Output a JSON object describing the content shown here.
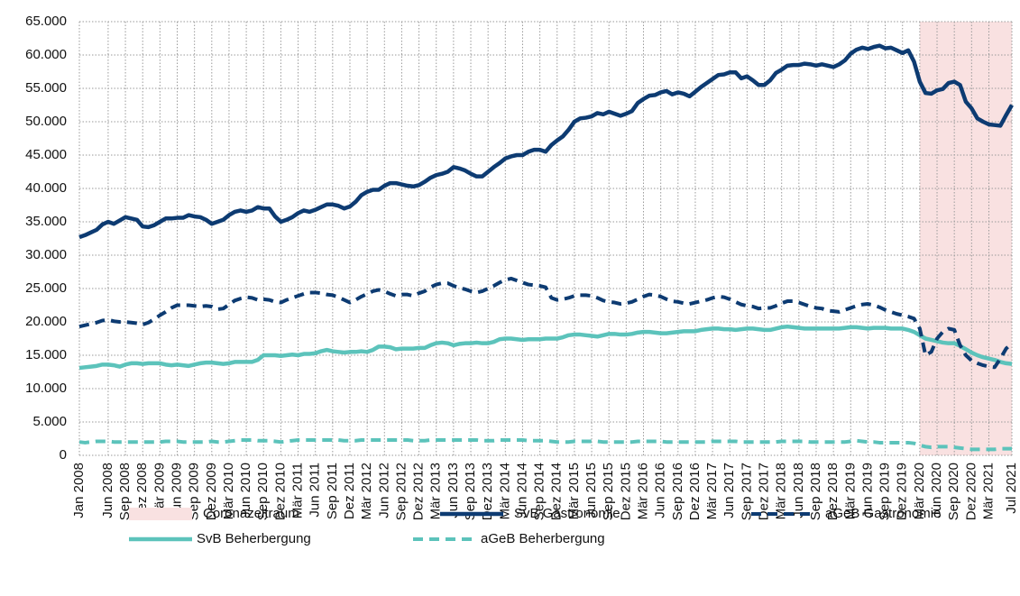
{
  "chart_data": {
    "type": "line",
    "categories": [
      "Jan 2008",
      null,
      null,
      null,
      null,
      "Jun 2008",
      null,
      null,
      "Sep 2008",
      null,
      null,
      "Dez 2008",
      null,
      null,
      "Mär 2009",
      null,
      null,
      "Jun 2009",
      null,
      null,
      "Sep 2009",
      null,
      null,
      "Dez 2009",
      null,
      null,
      "Mär 2010",
      null,
      null,
      "Jun 2010",
      null,
      null,
      "Sep 2010",
      null,
      null,
      "Dez 2010",
      null,
      null,
      "Mär 2011",
      null,
      null,
      "Jun 2011",
      null,
      null,
      "Sep 2011",
      null,
      null,
      "Dez 2011",
      null,
      null,
      "Mär 2012",
      null,
      null,
      "Jun 2012",
      null,
      null,
      "Sep 2012",
      null,
      null,
      "Dez 2012",
      null,
      null,
      "Mär 2013",
      null,
      null,
      "Jun 2013",
      null,
      null,
      "Sep 2013",
      null,
      null,
      "Dez 2013",
      null,
      null,
      "Mär 2014",
      null,
      null,
      "Jun 2014",
      null,
      null,
      "Sep 2014",
      null,
      null,
      "Dez 2014",
      null,
      null,
      "Mär 2015",
      null,
      null,
      "Jun 2015",
      null,
      null,
      "Sep 2015",
      null,
      null,
      "Dez 2015",
      null,
      null,
      "Mär 2016",
      null,
      null,
      "Jun 2016",
      null,
      null,
      "Sep 2016",
      null,
      null,
      "Dez 2016",
      null,
      null,
      "Mär 2017",
      null,
      null,
      "Jun 2017",
      null,
      null,
      "Sep 2017",
      null,
      null,
      "Dez 2017",
      null,
      null,
      "Mär 2018",
      null,
      null,
      "Jun 2018",
      null,
      null,
      "Sep 2018",
      null,
      null,
      "Dez 2018",
      null,
      null,
      "Mär 2019",
      null,
      null,
      "Jun 2019",
      null,
      null,
      "Sep 2019",
      null,
      null,
      "Dez 2019",
      null,
      null,
      "Mär 2020",
      null,
      null,
      "Jun 2020",
      null,
      null,
      "Sep 2020",
      null,
      null,
      "Dez 2020",
      null,
      null,
      "Mär 2021",
      null,
      null,
      null,
      "Jul 2021"
    ],
    "ylim": [
      0,
      65000
    ],
    "yticks": [
      0,
      {
        "value": 5000,
        "label": "5.000"
      },
      {
        "value": 10000,
        "label": "10.000"
      },
      {
        "value": 15000,
        "label": "15.000"
      },
      {
        "value": 20000,
        "label": "20.000"
      },
      {
        "value": 25000,
        "label": "25.000"
      },
      {
        "value": 30000,
        "label": "30.000"
      },
      {
        "value": 35000,
        "label": "35.000"
      },
      {
        "value": 40000,
        "label": "40.000"
      },
      {
        "value": 45000,
        "label": "45.000"
      },
      {
        "value": 50000,
        "label": "50.000"
      },
      {
        "value": 55000,
        "label": "55.000"
      },
      {
        "value": 60000,
        "label": "60.000"
      },
      {
        "value": 65000,
        "label": "65.000"
      }
    ],
    "grid": true,
    "shade": {
      "name": "Coronazeitraum",
      "color": "#f9e1e1",
      "from": "Mär 2020",
      "to": "Jul 2021"
    },
    "series": [
      {
        "name": "SvB Gastronomie",
        "color": "#0d3b72",
        "dashed": false,
        "values": [
          32700,
          33000,
          33400,
          33800,
          34600,
          35000,
          34700,
          35200,
          35700,
          35500,
          35300,
          34300,
          34200,
          34500,
          35000,
          35500,
          35500,
          35600,
          35600,
          36000,
          35800,
          35700,
          35300,
          34700,
          35000,
          35300,
          36000,
          36500,
          36700,
          36500,
          36700,
          37200,
          37000,
          37000,
          35800,
          35000,
          35300,
          35700,
          36300,
          36700,
          36500,
          36800,
          37200,
          37600,
          37600,
          37400,
          37000,
          37300,
          38000,
          39000,
          39500,
          39800,
          39800,
          40400,
          40800,
          40800,
          40600,
          40400,
          40300,
          40500,
          41000,
          41600,
          42000,
          42200,
          42500,
          43200,
          43000,
          42700,
          42200,
          41800,
          41800,
          42500,
          43200,
          43800,
          44500,
          44800,
          45000,
          45000,
          45500,
          45800,
          45800,
          45500,
          46500,
          47200,
          47800,
          48800,
          50000,
          50500,
          50600,
          50800,
          51300,
          51100,
          51500,
          51200,
          50900,
          51200,
          51600,
          52800,
          53400,
          53900,
          54000,
          54400,
          54600,
          54100,
          54400,
          54200,
          53800,
          54500,
          55200,
          55800,
          56400,
          57000,
          57100,
          57400,
          57400,
          56500,
          56800,
          56200,
          55500,
          55500,
          56200,
          57300,
          57800,
          58400,
          58500,
          58500,
          58700,
          58600,
          58400,
          58600,
          58400,
          58200,
          58600,
          59200,
          60200,
          60800,
          61100,
          60900,
          61200,
          61400,
          61000,
          61100,
          60700,
          60300,
          60700,
          59000,
          56000,
          54300,
          54200,
          54700,
          54900,
          55800,
          56000,
          55500,
          53000,
          52000,
          50500,
          50000,
          49600,
          49500,
          49400,
          51000,
          52500
        ]
      },
      {
        "name": "aGeB  Gastronomie",
        "color": "#0d3b72",
        "dashed": true,
        "values": [
          19300,
          19500,
          19700,
          19900,
          20200,
          20300,
          20100,
          20000,
          20000,
          19900,
          19800,
          19600,
          19900,
          20400,
          21000,
          21500,
          22100,
          22500,
          22500,
          22500,
          22400,
          22300,
          22400,
          22300,
          21900,
          22000,
          22600,
          23200,
          23500,
          23700,
          23600,
          23300,
          23400,
          23300,
          23000,
          22900,
          23300,
          23600,
          23900,
          24200,
          24400,
          24400,
          24300,
          24100,
          24000,
          23700,
          23300,
          22900,
          23300,
          23800,
          24200,
          24600,
          24800,
          24600,
          24200,
          23900,
          24100,
          24100,
          23900,
          24300,
          24600,
          25200,
          25600,
          25800,
          25800,
          25400,
          25100,
          24900,
          24600,
          24400,
          24600,
          25000,
          25400,
          25900,
          26300,
          26500,
          26200,
          25900,
          25600,
          25500,
          25400,
          25200,
          23600,
          23300,
          23400,
          23600,
          23900,
          24000,
          24000,
          23900,
          23600,
          23200,
          23000,
          22900,
          22700,
          22800,
          23000,
          23400,
          23800,
          24100,
          24000,
          23800,
          23400,
          23100,
          23000,
          22800,
          22700,
          22900,
          23100,
          23300,
          23600,
          23800,
          23700,
          23400,
          23000,
          22600,
          22400,
          22300,
          22000,
          22100,
          22100,
          22400,
          22800,
          23100,
          23100,
          22900,
          22600,
          22300,
          22100,
          22000,
          21700,
          21600,
          21500,
          21800,
          22100,
          22400,
          22600,
          22700,
          22500,
          22200,
          21800,
          21500,
          21200,
          21000,
          20800,
          20500,
          19000,
          15000,
          15500,
          17500,
          18500,
          19000,
          18800,
          16500,
          15000,
          14200,
          13800,
          13500,
          13300,
          13200,
          14500,
          16000,
          16800
        ]
      },
      {
        "name": "SvB Beherbergung",
        "color": "#5cc3bb",
        "dashed": false,
        "values": [
          13100,
          13200,
          13300,
          13400,
          13600,
          13600,
          13500,
          13300,
          13600,
          13800,
          13800,
          13700,
          13800,
          13800,
          13800,
          13600,
          13500,
          13600,
          13500,
          13400,
          13600,
          13800,
          13900,
          13900,
          13800,
          13700,
          13800,
          14000,
          14000,
          14000,
          14000,
          14300,
          15000,
          15000,
          15000,
          14900,
          15000,
          15100,
          15000,
          15200,
          15200,
          15300,
          15600,
          15800,
          15600,
          15500,
          15400,
          15500,
          15500,
          15600,
          15500,
          15800,
          16300,
          16300,
          16200,
          15900,
          16000,
          16000,
          16000,
          16100,
          16100,
          16500,
          16800,
          16900,
          16800,
          16500,
          16700,
          16800,
          16800,
          16900,
          16800,
          16800,
          17000,
          17400,
          17500,
          17500,
          17400,
          17300,
          17400,
          17400,
          17400,
          17500,
          17500,
          17500,
          17700,
          18000,
          18100,
          18100,
          18000,
          17900,
          17800,
          18000,
          18200,
          18200,
          18100,
          18100,
          18200,
          18400,
          18500,
          18500,
          18400,
          18300,
          18300,
          18400,
          18500,
          18600,
          18600,
          18600,
          18800,
          18900,
          19000,
          19000,
          18900,
          18900,
          18800,
          18900,
          19000,
          19000,
          18900,
          18800,
          18800,
          19000,
          19200,
          19300,
          19200,
          19100,
          19000,
          19000,
          19000,
          19000,
          19000,
          19000,
          19000,
          19100,
          19200,
          19200,
          19100,
          19000,
          19100,
          19100,
          19100,
          19000,
          19000,
          19000,
          18800,
          18500,
          18000,
          17500,
          17300,
          17100,
          16900,
          16800,
          16800,
          16400,
          15900,
          15400,
          15000,
          14700,
          14500,
          14300,
          14000,
          13800,
          13700
        ]
      },
      {
        "name": "aGeB  Beherbergung",
        "color": "#5cc3bb",
        "dashed": true,
        "values": [
          2000,
          1900,
          2000,
          2100,
          2100,
          2100,
          2000,
          2000,
          2000,
          2000,
          2000,
          2000,
          2000,
          2000,
          2000,
          2100,
          2100,
          2100,
          2000,
          2000,
          2000,
          2000,
          2000,
          2100,
          2000,
          2000,
          2100,
          2200,
          2300,
          2300,
          2300,
          2200,
          2200,
          2200,
          2100,
          2000,
          2100,
          2200,
          2300,
          2300,
          2300,
          2300,
          2300,
          2300,
          2300,
          2300,
          2200,
          2200,
          2200,
          2300,
          2300,
          2300,
          2300,
          2300,
          2300,
          2300,
          2300,
          2300,
          2200,
          2200,
          2200,
          2300,
          2300,
          2300,
          2300,
          2300,
          2300,
          2300,
          2300,
          2300,
          2200,
          2200,
          2200,
          2300,
          2300,
          2300,
          2300,
          2300,
          2200,
          2200,
          2200,
          2200,
          2100,
          2000,
          2000,
          2000,
          2100,
          2100,
          2100,
          2100,
          2100,
          2000,
          2000,
          2000,
          2000,
          2000,
          2000,
          2100,
          2100,
          2100,
          2100,
          2100,
          2000,
          2000,
          2000,
          2000,
          2000,
          2000,
          2000,
          2000,
          2100,
          2100,
          2100,
          2100,
          2100,
          2000,
          2000,
          2000,
          2000,
          2000,
          2000,
          2000,
          2100,
          2100,
          2100,
          2100,
          2100,
          2000,
          2000,
          2000,
          2000,
          2000,
          2000,
          2000,
          2100,
          2200,
          2100,
          2000,
          2000,
          1900,
          1900,
          1900,
          1900,
          1900,
          1900,
          1800,
          1500,
          1300,
          1200,
          1300,
          1300,
          1300,
          1200,
          1100,
          1000,
          900,
          900,
          900,
          900,
          900,
          1000,
          1000,
          1000
        ]
      }
    ]
  }
}
